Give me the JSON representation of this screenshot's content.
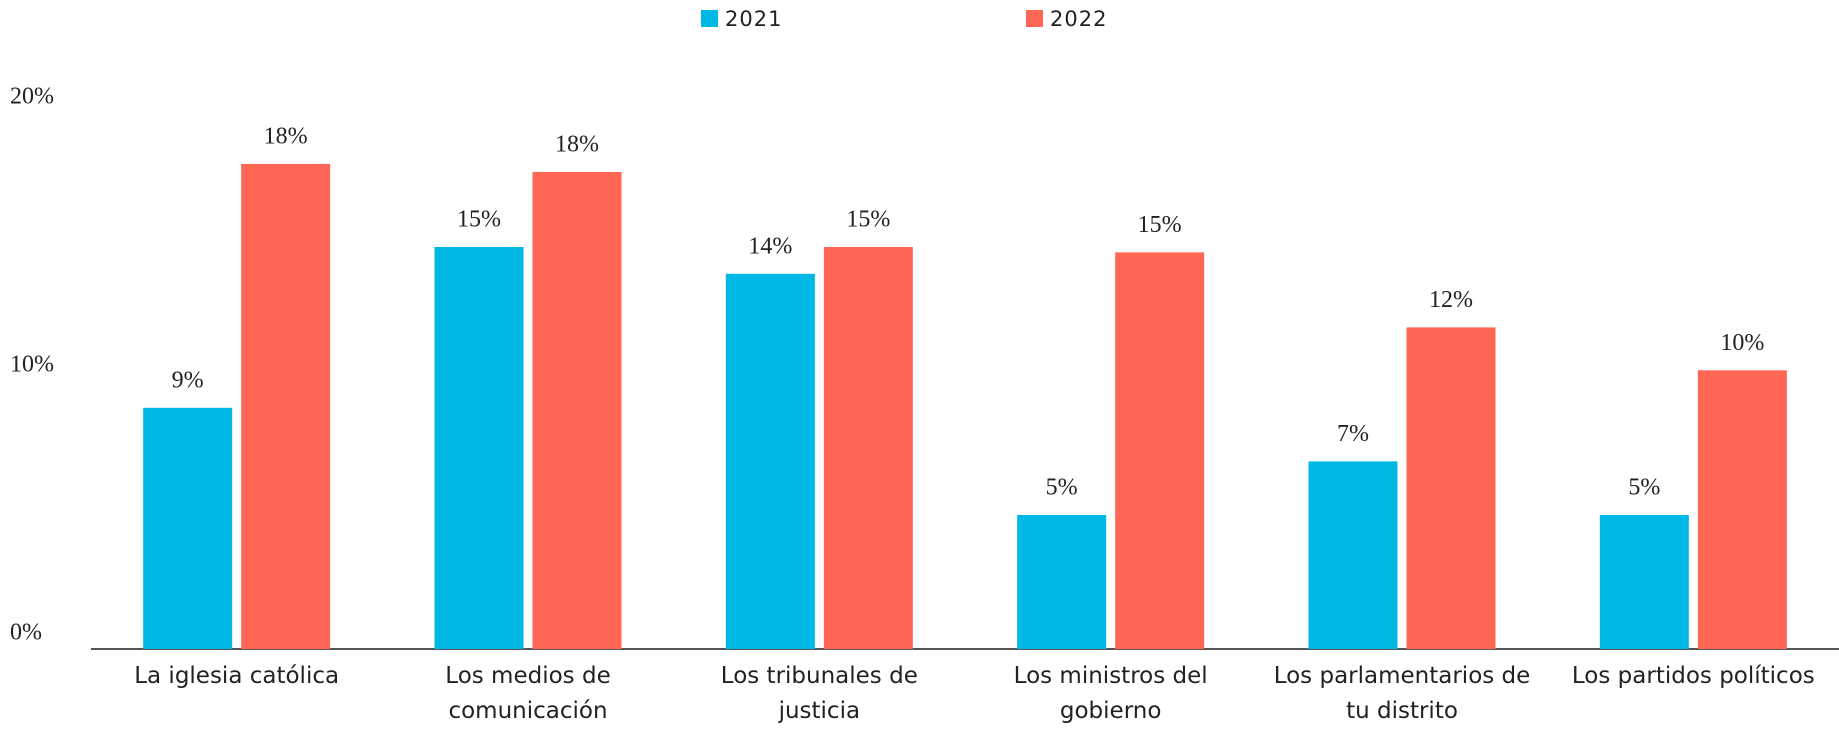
{
  "chart_data": {
    "type": "bar",
    "categories": [
      "La iglesia católica",
      "Los medios de comunicación",
      "Los tribunales de justicia",
      "Los ministros del gobierno",
      "Los parlamentarios de tu distrito",
      "Los partidos políticos"
    ],
    "series": [
      {
        "name": "2021",
        "color": "#00b8e6",
        "values": [
          9.0,
          15.0,
          14.0,
          5.0,
          7.0,
          5.0
        ],
        "value_labels": [
          "9%",
          "15%",
          "14%",
          "5%",
          "7%",
          "5%"
        ]
      },
      {
        "name": "2022",
        "color": "#ff6654",
        "values": [
          18.1,
          17.8,
          15.0,
          14.8,
          12.0,
          10.4
        ],
        "value_labels": [
          "18%",
          "18%",
          "15%",
          "15%",
          "12%",
          "10%"
        ]
      }
    ],
    "ylim": [
      0,
      20
    ],
    "yticks": [
      {
        "value": 0,
        "label": "0%"
      },
      {
        "value": 10,
        "label": "10%"
      },
      {
        "value": 20,
        "label": "20%"
      }
    ],
    "legend": "top"
  }
}
